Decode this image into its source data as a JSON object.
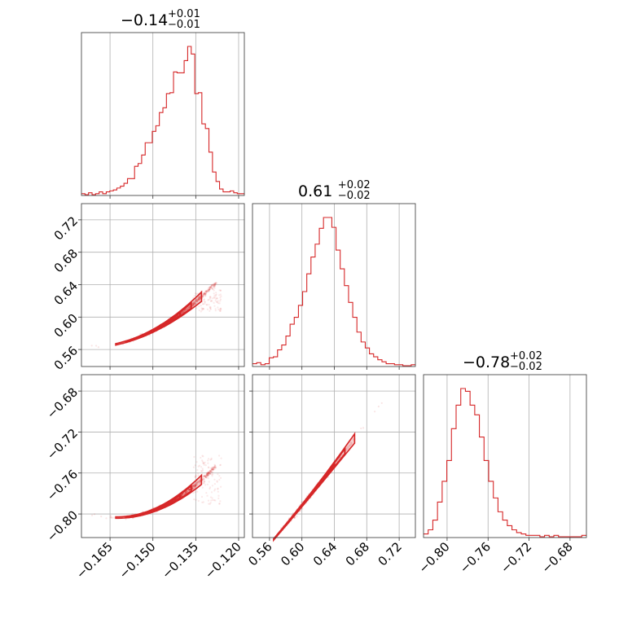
{
  "chart_data": {
    "type": "corner",
    "color": "#d62728",
    "params": [
      {
        "median": -0.14,
        "plus": "+0.01",
        "minus": "−0.01",
        "title_main": "−0.14",
        "range": [
          -0.175,
          -0.118
        ],
        "ticks": [
          -0.165,
          -0.15,
          -0.135,
          -0.12
        ],
        "tick_labels": [
          "−0.165",
          "−0.150",
          "−0.135",
          "−0.120"
        ]
      },
      {
        "median": 0.61,
        "plus": "+0.02",
        "minus": "−0.02",
        "title_main": "0.61",
        "range": [
          0.539,
          0.74
        ],
        "ticks": [
          0.56,
          0.6,
          0.64,
          0.68,
          0.72
        ],
        "tick_labels": [
          "0.56",
          "0.60",
          "0.64",
          "0.68",
          "0.72"
        ]
      },
      {
        "median": -0.78,
        "plus": "+0.02",
        "minus": "−0.02",
        "title_main": "−0.78",
        "range": [
          -0.823,
          -0.664
        ],
        "ticks": [
          -0.8,
          -0.76,
          -0.72,
          -0.68
        ],
        "tick_labels": [
          "−0.80",
          "−0.76",
          "−0.72",
          "−0.68"
        ]
      }
    ],
    "histograms": [
      {
        "param": 0,
        "counts": [
          1,
          0,
          2,
          0,
          1,
          3,
          1,
          3,
          4,
          5,
          7,
          9,
          12,
          17,
          17,
          30,
          33,
          42,
          55,
          55,
          67,
          73,
          87,
          92,
          107,
          108,
          130,
          129,
          129,
          142,
          157,
          149,
          107,
          108,
          75,
          70,
          45,
          24,
          14,
          6,
          3,
          3,
          4,
          2,
          1,
          1
        ]
      },
      {
        "param": 1,
        "counts": [
          2,
          3,
          1,
          2,
          8,
          9,
          16,
          21,
          30,
          42,
          49,
          61,
          75,
          93,
          110,
          123,
          139,
          150,
          150,
          140,
          117,
          98,
          81,
          64,
          49,
          34,
          24,
          18,
          12,
          9,
          6,
          4,
          2,
          2,
          1,
          1,
          0,
          0,
          1
        ]
      },
      {
        "param": 2,
        "counts": [
          2,
          5,
          12,
          25,
          40,
          55,
          78,
          95,
          107,
          105,
          95,
          88,
          72,
          55,
          40,
          28,
          18,
          12,
          8,
          5,
          3,
          2,
          1,
          1,
          1,
          0,
          1,
          0,
          1,
          0,
          0,
          0,
          0,
          0,
          1
        ]
      }
    ]
  }
}
